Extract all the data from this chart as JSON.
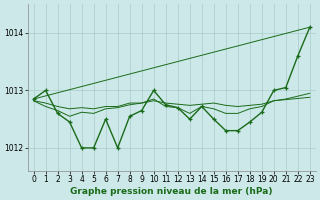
{
  "bg_color": "#cce8e8",
  "grid_color": "#aacccc",
  "line_color": "#1a6b1a",
  "xlim": [
    -0.5,
    23.5
  ],
  "ylim": [
    1011.6,
    1014.5
  ],
  "yticks": [
    1012,
    1013,
    1014
  ],
  "xticks": [
    0,
    1,
    2,
    3,
    4,
    5,
    6,
    7,
    8,
    9,
    10,
    11,
    12,
    13,
    14,
    15,
    16,
    17,
    18,
    19,
    20,
    21,
    22,
    23
  ],
  "xlabel": "Graphe pression niveau de la mer (hPa)",
  "series_trend_x": [
    0,
    23
  ],
  "series_trend_y": [
    1012.85,
    1014.1
  ],
  "series_flat_x": [
    0,
    1,
    2,
    3,
    4,
    5,
    6,
    7,
    8,
    9,
    10,
    11,
    12,
    13,
    14,
    15,
    16,
    17,
    18,
    19,
    20,
    21,
    22,
    23
  ],
  "series_flat_y": [
    1012.82,
    1012.78,
    1012.72,
    1012.68,
    1012.7,
    1012.68,
    1012.72,
    1012.72,
    1012.78,
    1012.78,
    1012.82,
    1012.78,
    1012.76,
    1012.74,
    1012.76,
    1012.78,
    1012.74,
    1012.72,
    1012.74,
    1012.76,
    1012.82,
    1012.84,
    1012.86,
    1012.88
  ],
  "series_wavy_x": [
    0,
    1,
    2,
    3,
    4,
    5,
    6,
    7,
    8,
    9,
    10,
    11,
    12,
    13,
    14,
    15,
    16,
    17,
    18,
    19,
    20,
    21,
    22,
    23
  ],
  "series_wavy_y": [
    1012.85,
    1013.0,
    1012.6,
    1012.45,
    1012.0,
    1012.0,
    1012.5,
    1012.0,
    1012.55,
    1012.65,
    1013.0,
    1012.75,
    1012.7,
    1012.5,
    1012.72,
    1012.5,
    1012.3,
    1012.3,
    1012.45,
    1012.62,
    1013.0,
    1013.05,
    1013.6,
    1014.1
  ],
  "series_smooth_x": [
    0,
    1,
    2,
    3,
    4,
    5,
    6,
    7,
    8,
    9,
    10,
    11,
    12,
    13,
    14,
    15,
    16,
    17,
    18,
    19,
    20,
    21,
    22,
    23
  ],
  "series_smooth_y": [
    1012.82,
    1012.72,
    1012.65,
    1012.55,
    1012.62,
    1012.6,
    1012.68,
    1012.7,
    1012.75,
    1012.78,
    1012.85,
    1012.72,
    1012.7,
    1012.6,
    1012.72,
    1012.68,
    1012.6,
    1012.6,
    1012.68,
    1012.72,
    1012.82,
    1012.85,
    1012.9,
    1012.95
  ],
  "marker": "+",
  "marker_size": 3.5,
  "lw_thick": 1.0,
  "lw_thin": 0.7,
  "tick_fontsize": 5.5,
  "label_fontsize": 6.5
}
